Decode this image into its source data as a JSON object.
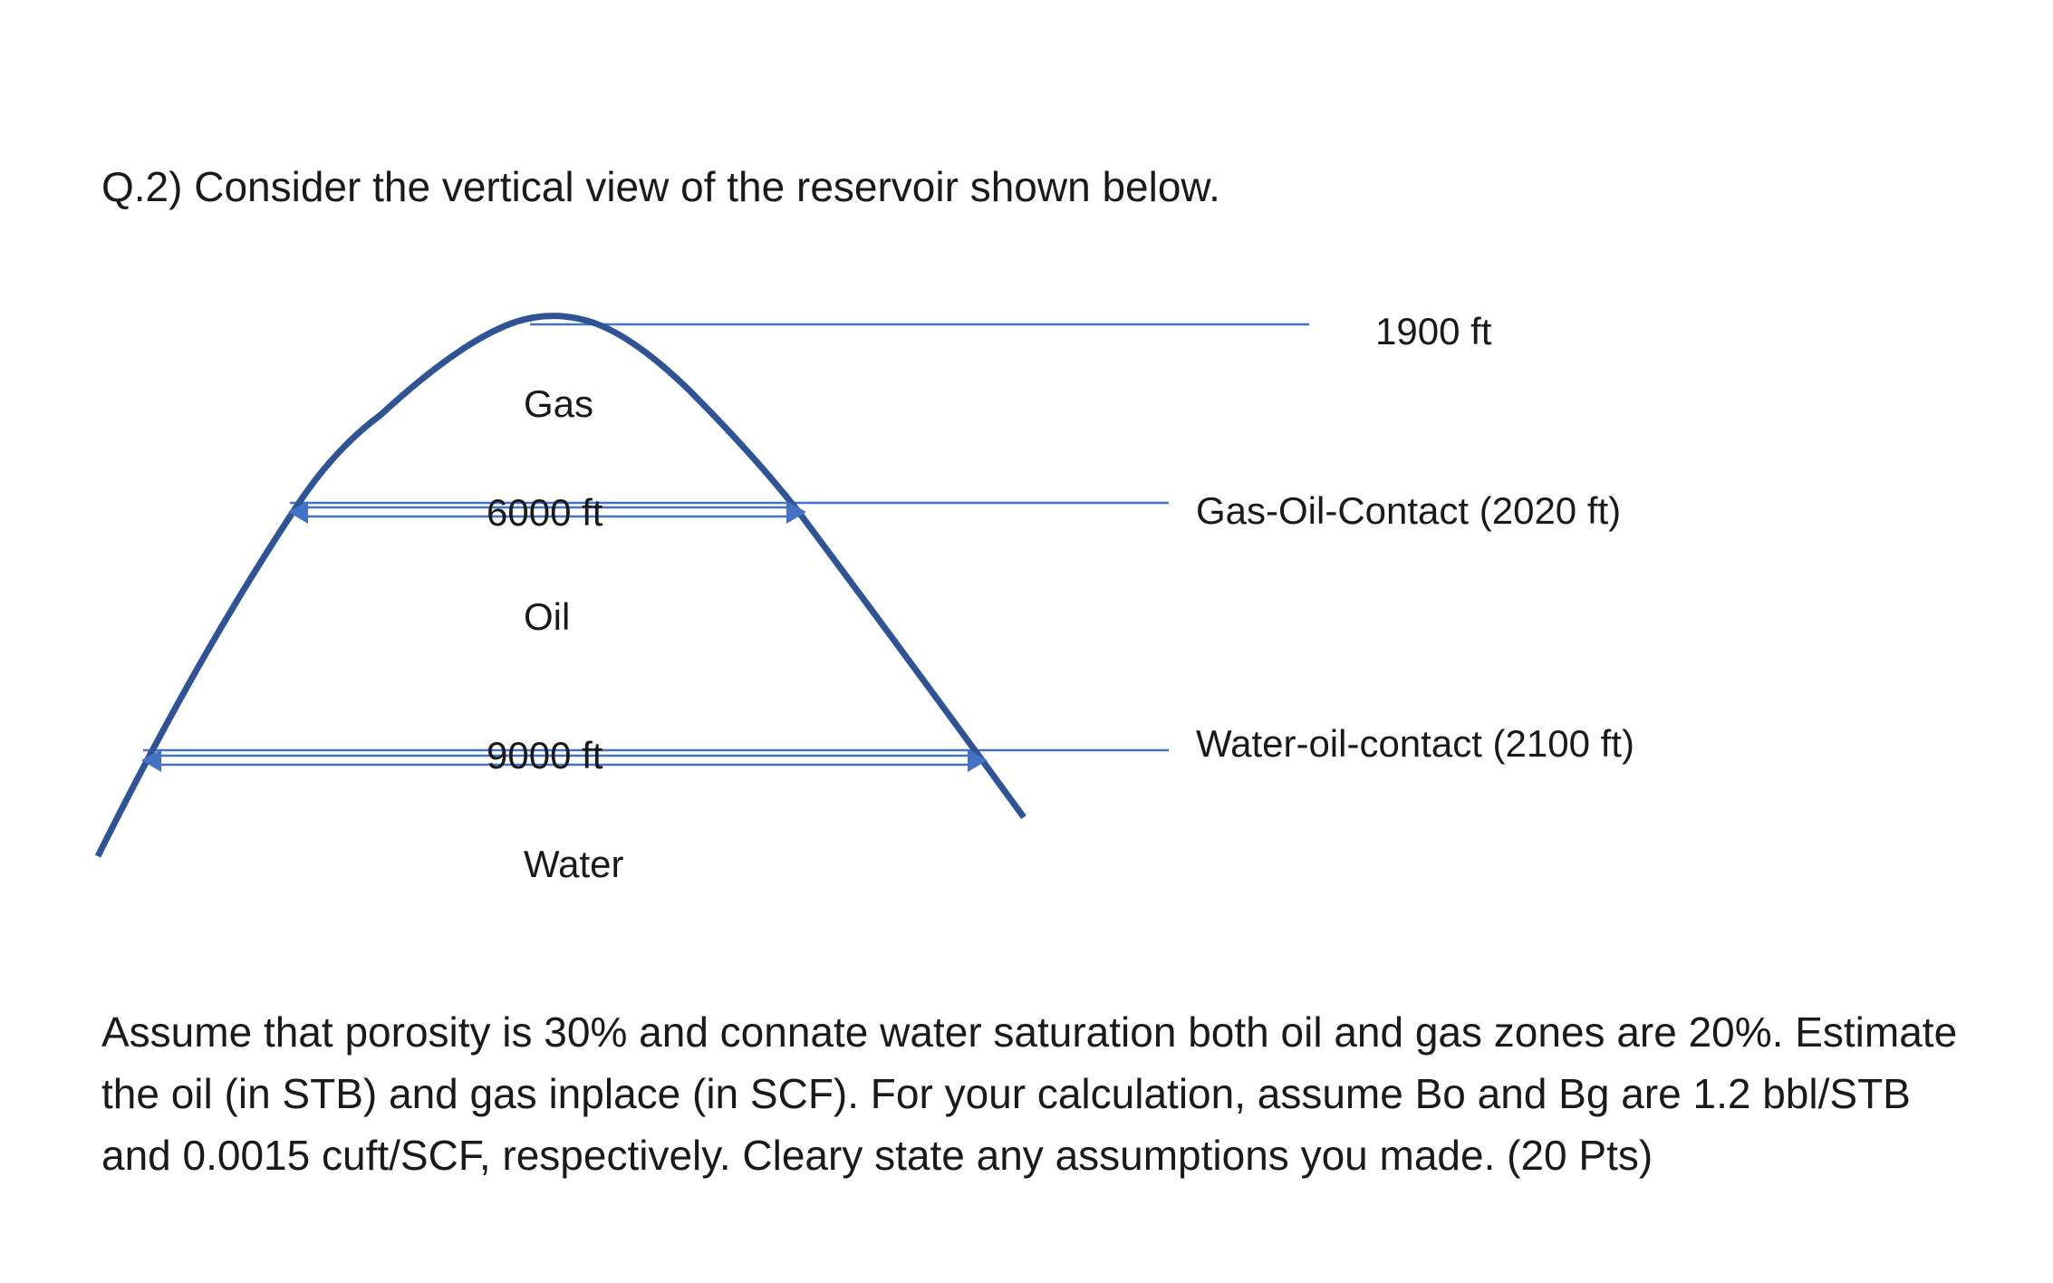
{
  "question": {
    "title": "Q.2) Consider the vertical view of the reservoir shown below."
  },
  "diagram": {
    "zones": {
      "gas": "Gas",
      "oil": "Oil",
      "water": "Water"
    },
    "widths": {
      "gas_oil_contact_width": "6000 ft",
      "water_oil_contact_width": "9000 ft"
    },
    "depths": {
      "top": "1900 ft",
      "gas_oil_contact": "Gas-Oil-Contact (2020 ft)",
      "water_oil_contact": "Water-oil-contact (2100 ft)"
    },
    "colors": {
      "curve": "#2f5496",
      "contact_lines": "#4472c4"
    }
  },
  "problem": {
    "text": "Assume that porosity is 30% and connate water saturation both oil and gas zones are 20%. Estimate the oil (in STB) and gas inplace (in SCF). For your calculation, assume Bo and Bg are 1.2 bbl/STB and 0.0015 cuft/SCF, respectively. Cleary state any assumptions you made. (20 Pts)"
  }
}
